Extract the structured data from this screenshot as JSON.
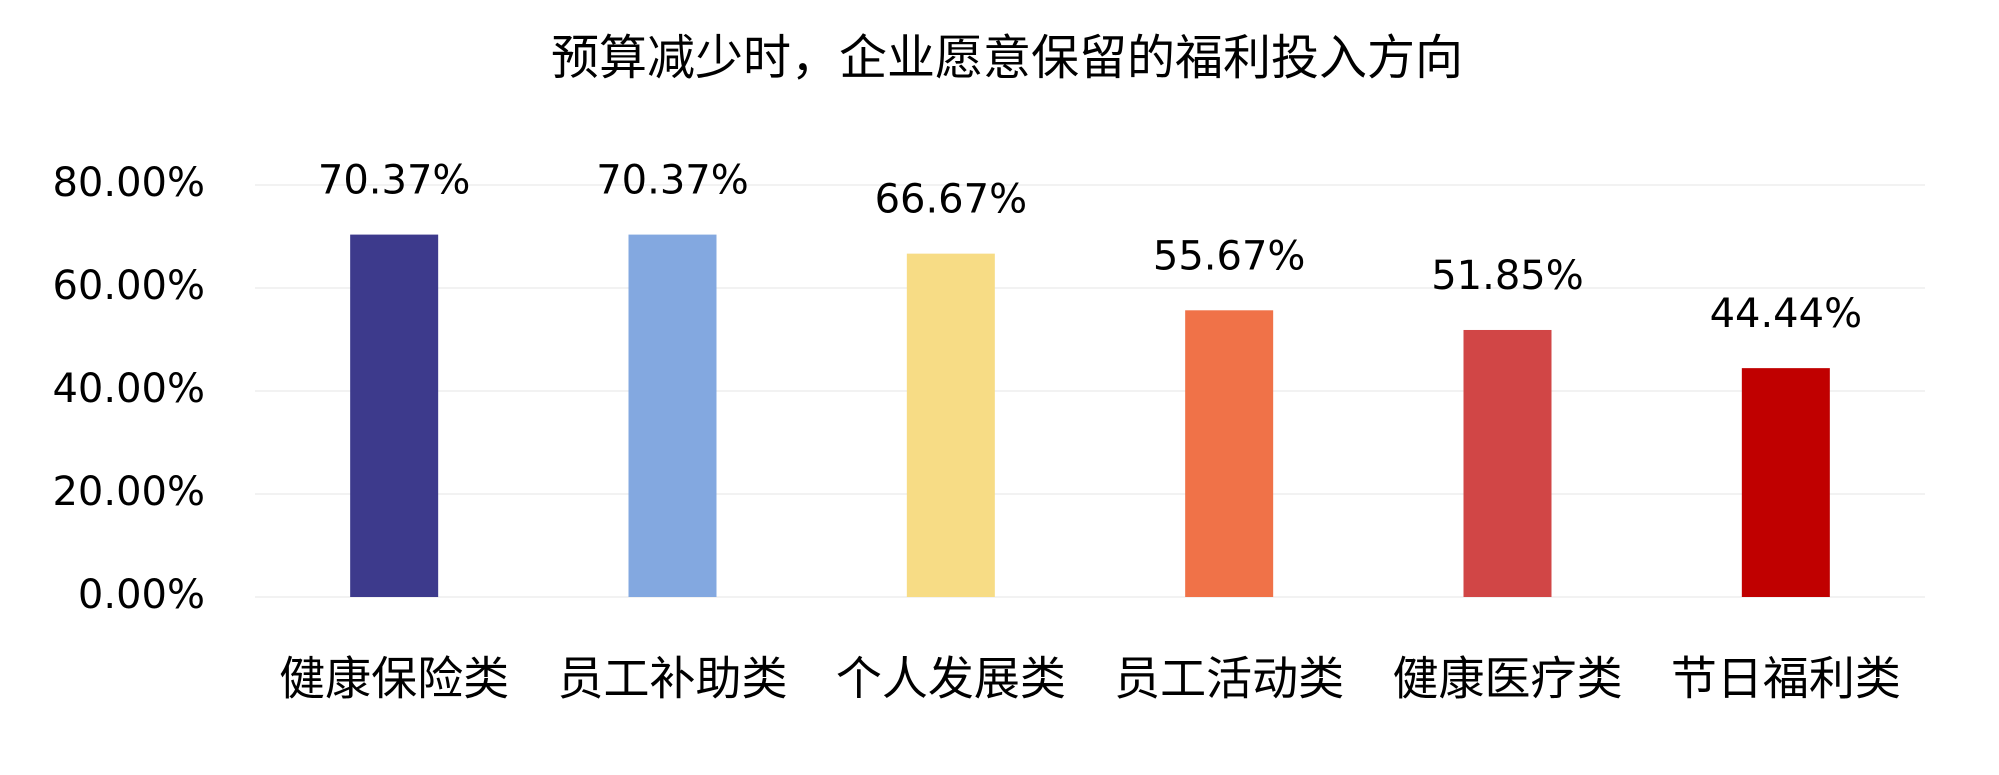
{
  "chart_data": {
    "type": "bar",
    "title": "预算减少时，企业愿意保留的福利投入方向",
    "categories": [
      "健康保险类",
      "员工补助类",
      "个人发展类",
      "员工活动类",
      "健康医疗类",
      "节日福利类"
    ],
    "values": [
      70.37,
      70.37,
      66.67,
      55.67,
      51.85,
      44.44
    ],
    "value_labels": [
      "70.37%",
      "70.37%",
      "66.67%",
      "55.67%",
      "51.85%",
      "44.44%"
    ],
    "colors": [
      "#3d3a8c",
      "#83a8e0",
      "#f7dc85",
      "#f07248",
      "#d14646",
      "#c00000"
    ],
    "ylim": [
      0,
      80
    ],
    "yticks": [
      {
        "value": 0,
        "label": "0.00%"
      },
      {
        "value": 20,
        "label": "20.00%"
      },
      {
        "value": 40,
        "label": "40.00%"
      },
      {
        "value": 60,
        "label": "60.00%"
      },
      {
        "value": 80,
        "label": "80.00%"
      }
    ],
    "grid": true
  }
}
